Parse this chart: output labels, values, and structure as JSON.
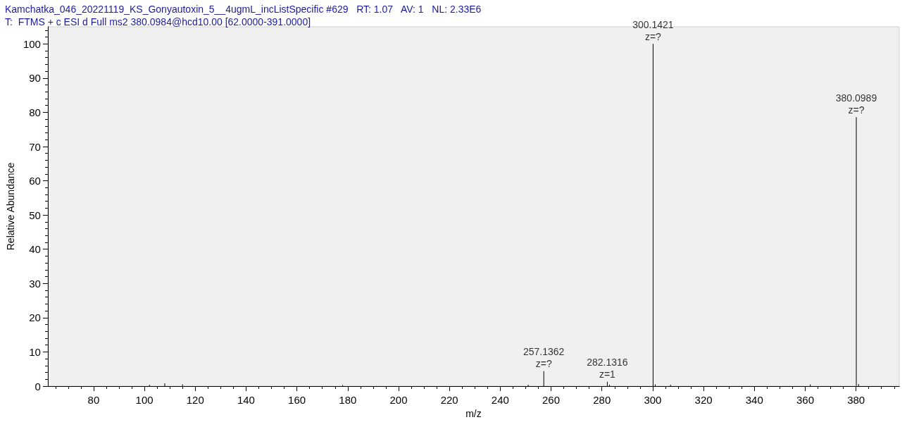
{
  "chart_data": {
    "type": "bar",
    "title": "Kamchatka_046_20221119_KS_Gonyautoxin_5__4ugmL_incListSpecific #629   RT: 1.07   AV: 1   NL: 2.33E6",
    "subtitle": "T:  FTMS + c ESI d Full ms2 380.0984@hcd10.00 [62.0000-391.0000]",
    "xlabel": "m/z",
    "ylabel": "Relative Abundance",
    "x": [
      102,
      108,
      115,
      178,
      251,
      257.1362,
      282.1316,
      283,
      300.1421,
      301,
      307,
      362,
      380.0989,
      381
    ],
    "values": [
      0.4,
      0.8,
      0.5,
      0.3,
      0.4,
      4.4,
      1.3,
      0.4,
      100,
      0.5,
      0.4,
      0.5,
      78.6,
      0.6
    ],
    "annotations": [
      {
        "text": "257.1362\nz=?",
        "x": 257.1362,
        "y": 4.4
      },
      {
        "text": "282.1316\nz=1",
        "x": 282.1316,
        "y": 1.3
      },
      {
        "text": "300.1421\nz=?",
        "x": 300.1421,
        "y": 100
      },
      {
        "text": "380.0989\nz=?",
        "x": 380.0989,
        "y": 78.6
      }
    ],
    "color": "#000000",
    "xlim": [
      62,
      397
    ],
    "xticks": [
      80,
      100,
      120,
      140,
      160,
      180,
      200,
      220,
      240,
      260,
      280,
      300,
      320,
      340,
      360,
      380
    ],
    "ylim": [
      0,
      105
    ],
    "yticks": [
      0,
      10,
      20,
      30,
      40,
      50,
      60,
      70,
      80,
      90,
      100
    ],
    "grid": false
  }
}
